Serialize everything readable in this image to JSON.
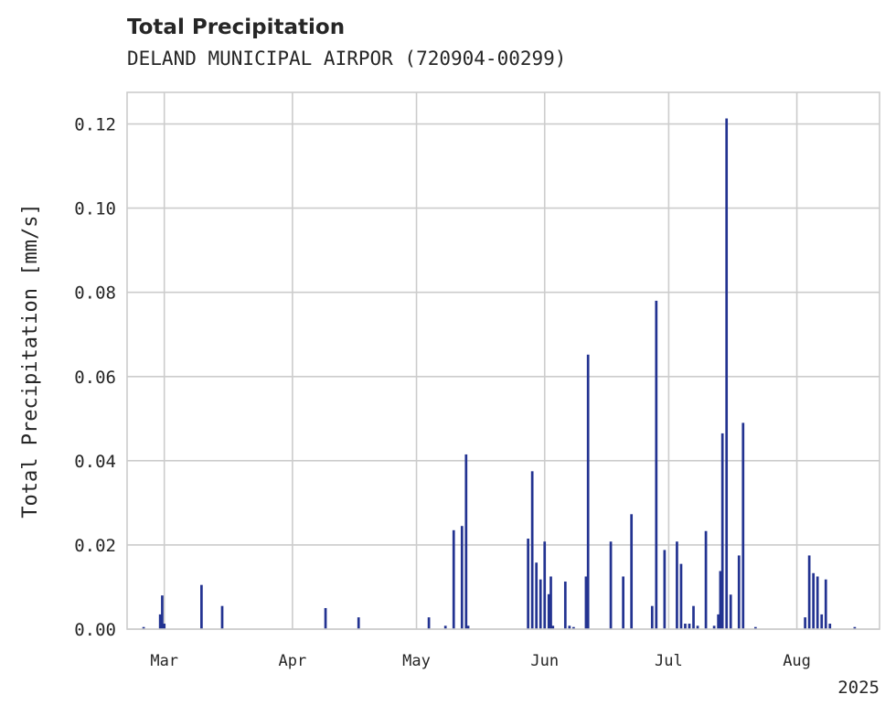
{
  "chart_data": {
    "type": "bar",
    "title": "Total Precipitation",
    "subtitle": "DELAND MUNICIPAL AIRPOR (720904-00299)",
    "ylabel": "Total Precipitation [mm/s]",
    "xlabel": "",
    "year_label": "2025",
    "ylim": [
      0,
      0.1275
    ],
    "yticks": [
      0.0,
      0.02,
      0.04,
      0.06,
      0.08,
      0.1,
      0.12
    ],
    "ytick_labels": [
      "0.00",
      "0.02",
      "0.04",
      "0.06",
      "0.08",
      "0.10",
      "0.12"
    ],
    "xlim": [
      "2025-02-20",
      "2025-08-21"
    ],
    "xticks": [
      "2025-03-01",
      "2025-04-01",
      "2025-05-01",
      "2025-06-01",
      "2025-07-01",
      "2025-08-01"
    ],
    "xtick_labels": [
      "Mar",
      "Apr",
      "May",
      "Jun",
      "Jul",
      "Aug"
    ],
    "grid": true,
    "bar_color": "#233391",
    "x": [
      "2025-02-24",
      "2025-02-28",
      "2025-02-28T12:00",
      "2025-03-01",
      "2025-03-10",
      "2025-03-15",
      "2025-04-09",
      "2025-04-17",
      "2025-05-04",
      "2025-05-08",
      "2025-05-10",
      "2025-05-12",
      "2025-05-13",
      "2025-05-13T12:00",
      "2025-05-28",
      "2025-05-29",
      "2025-05-30",
      "2025-05-31",
      "2025-06-01",
      "2025-06-02",
      "2025-06-02T12:00",
      "2025-06-03",
      "2025-06-06",
      "2025-06-07",
      "2025-06-08",
      "2025-06-11",
      "2025-06-11T12:00",
      "2025-06-17",
      "2025-06-20",
      "2025-06-22",
      "2025-06-27",
      "2025-06-28",
      "2025-06-30",
      "2025-07-03",
      "2025-07-04",
      "2025-07-05",
      "2025-07-06",
      "2025-07-07",
      "2025-07-08",
      "2025-07-10",
      "2025-07-12",
      "2025-07-13",
      "2025-07-13T12:00",
      "2025-07-14",
      "2025-07-15",
      "2025-07-16",
      "2025-07-18",
      "2025-07-19",
      "2025-07-22",
      "2025-08-03",
      "2025-08-04",
      "2025-08-05",
      "2025-08-06",
      "2025-08-07",
      "2025-08-08",
      "2025-08-09",
      "2025-08-15"
    ],
    "values": [
      0.0005,
      0.0035,
      0.008,
      0.0013,
      0.0105,
      0.0055,
      0.005,
      0.0028,
      0.0028,
      0.0008,
      0.0235,
      0.0245,
      0.0415,
      0.0008,
      0.0215,
      0.0375,
      0.0158,
      0.0118,
      0.0208,
      0.0083,
      0.0125,
      0.0008,
      0.0113,
      0.0008,
      0.0005,
      0.0125,
      0.0652,
      0.0208,
      0.0125,
      0.0273,
      0.0055,
      0.078,
      0.0188,
      0.0208,
      0.0155,
      0.0013,
      0.0013,
      0.0055,
      0.0008,
      0.0233,
      0.0008,
      0.0035,
      0.0138,
      0.0465,
      0.1213,
      0.0082,
      0.0175,
      0.049,
      0.0005,
      0.0028,
      0.0175,
      0.0133,
      0.0125,
      0.0035,
      0.0118,
      0.0013,
      0.0005
    ]
  }
}
